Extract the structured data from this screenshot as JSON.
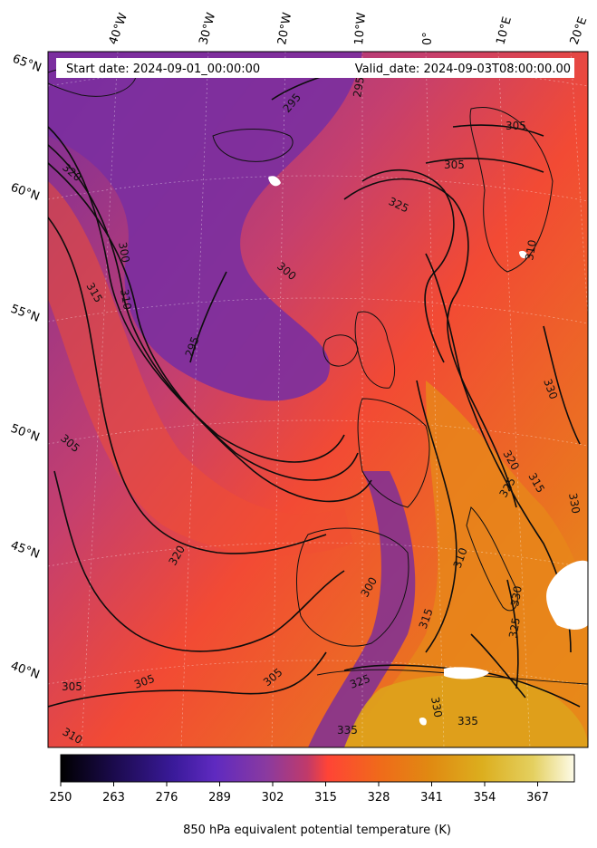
{
  "header": {
    "start_date": "Start date: 2024-09-01_00:00:00",
    "valid_date": "Valid_date: 2024-09-03T08:00:00.00"
  },
  "map": {
    "longitude_labels": [
      "40°W",
      "30°W",
      "20°W",
      "10°W",
      "0°",
      "10°E",
      "20°E"
    ],
    "latitude_labels": [
      "65°N",
      "60°N",
      "55°N",
      "50°N",
      "45°N",
      "40°N"
    ],
    "contour_labels": [
      "295",
      "295",
      "300",
      "300",
      "305",
      "305",
      "305",
      "305",
      "310",
      "310",
      "310",
      "315",
      "315",
      "320",
      "320",
      "325",
      "325",
      "325",
      "330",
      "330",
      "330",
      "335",
      "295",
      "300",
      "305",
      "320",
      "315",
      "325",
      "330",
      "335",
      "305",
      "310"
    ]
  },
  "colorbar": {
    "label": "850 hPa equivalent potential temperature (K)",
    "ticks": [
      "250",
      "263",
      "276",
      "289",
      "302",
      "315",
      "328",
      "341",
      "354",
      "367"
    ],
    "colormap": [
      "#000000",
      "#1a0a4a",
      "#3a1a9a",
      "#5f2ac0",
      "#8a3aa0",
      "#c03a6a",
      "#ff4436",
      "#f06a1a",
      "#e08a12",
      "#dcae1e",
      "#e4d060",
      "#fdfbe8"
    ]
  }
}
